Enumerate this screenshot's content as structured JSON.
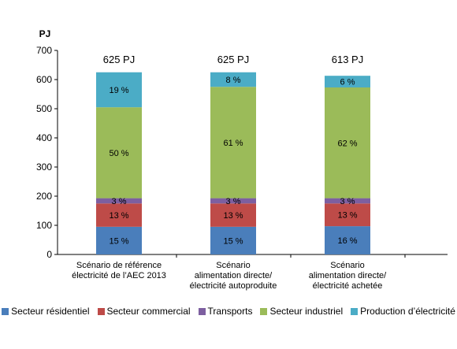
{
  "chart_data": {
    "type": "bar",
    "stacked": true,
    "ylabel": "PJ",
    "ylim": [
      0,
      700
    ],
    "yticks": [
      0,
      100,
      200,
      300,
      400,
      500,
      600,
      700
    ],
    "grid": false,
    "legend_position": "bottom",
    "categories": [
      [
        "Scénario de référence",
        "électricité de l’AEC 2013"
      ],
      [
        "Scénario",
        "alimentation directe/",
        "électricité autoproduite"
      ],
      [
        "Scénario",
        "alimentation directe/",
        "électricité achetée"
      ]
    ],
    "totals": [
      "625 PJ",
      "625 PJ",
      "613 PJ"
    ],
    "series": [
      {
        "name": "Secteur résidentiel",
        "color": "#4A7EBB",
        "values": [
          95,
          95,
          97
        ],
        "labels": [
          "15 %",
          "15 %",
          "16 %"
        ]
      },
      {
        "name": "Secteur commercial",
        "color": "#BE4B48",
        "values": [
          80,
          80,
          78
        ],
        "labels": [
          "13 %",
          "13 %",
          "13 %"
        ]
      },
      {
        "name": "Transports",
        "color": "#7D5FA0",
        "values": [
          18,
          18,
          18
        ],
        "labels": [
          "3 %",
          "3 %",
          "3 %"
        ]
      },
      {
        "name": "Secteur industriel",
        "color": "#9BBB59",
        "values": [
          312,
          382,
          380
        ],
        "labels": [
          "50 %",
          "61 %",
          "62 %"
        ]
      },
      {
        "name": "Production d’électricité",
        "color": "#4BACC6",
        "values": [
          120,
          50,
          40
        ],
        "labels": [
          "19 %",
          "8 %",
          "6 %"
        ]
      }
    ]
  }
}
